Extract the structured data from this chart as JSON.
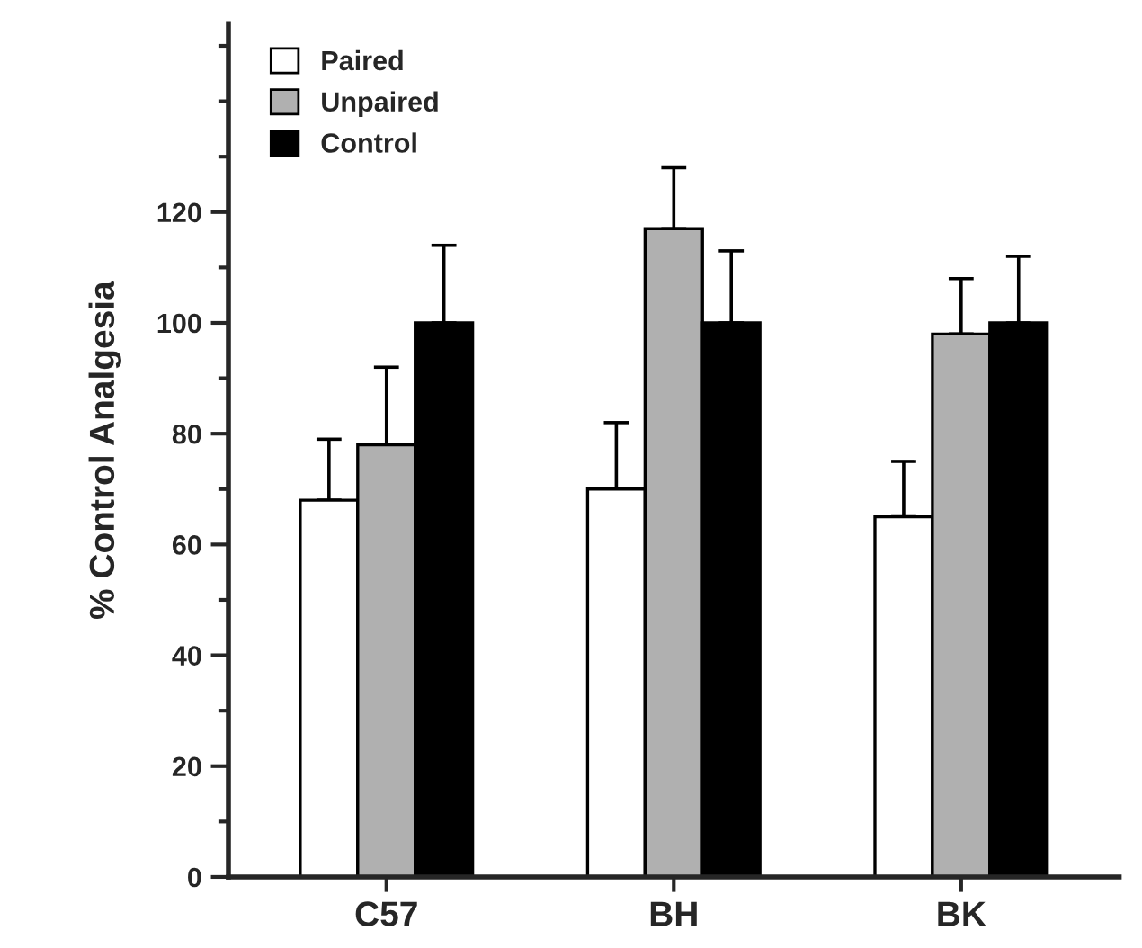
{
  "chart_data": {
    "type": "bar",
    "ylabel": "% Control Analgesia",
    "categories": [
      "C57",
      "BH",
      "BK"
    ],
    "series": [
      {
        "name": "Paired",
        "color": "#ffffff",
        "values": [
          68,
          70,
          65
        ],
        "errors": [
          [
            68,
            79
          ],
          [
            70,
            82
          ],
          [
            65,
            75
          ]
        ]
      },
      {
        "name": "Unpaired",
        "color": "#b0b0b0",
        "values": [
          78,
          117,
          98
        ],
        "errors": [
          [
            78,
            92
          ],
          [
            117,
            128
          ],
          [
            98,
            108
          ]
        ]
      },
      {
        "name": "Control",
        "color": "#000000",
        "values": [
          100,
          100,
          100
        ],
        "errors": [
          [
            100,
            114
          ],
          [
            100,
            113
          ],
          [
            100,
            112
          ]
        ]
      }
    ],
    "ylim": [
      0,
      154
    ],
    "yticks": [
      0,
      20,
      40,
      60,
      80,
      100,
      120
    ],
    "grid": false,
    "legend": "top left"
  }
}
